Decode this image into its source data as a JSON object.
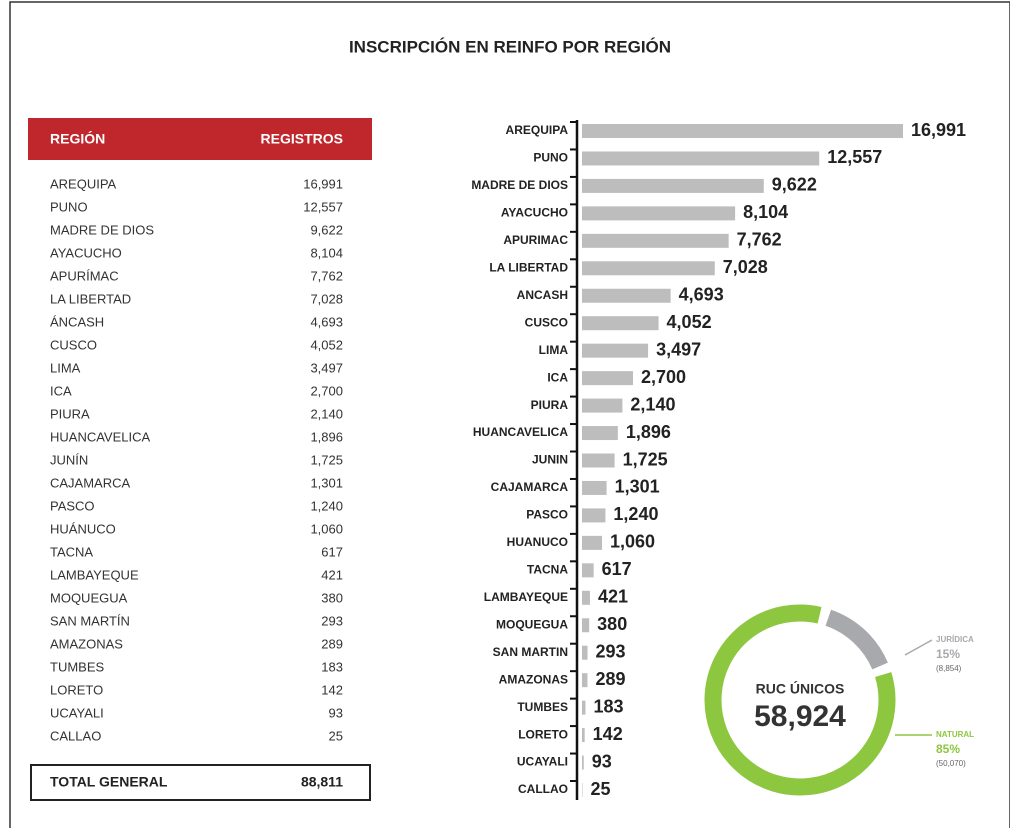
{
  "title": "INSCRIPCIÓN EN REINFO POR REGIÓN",
  "table": {
    "header": [
      "REGIÓN",
      "REGISTROS"
    ],
    "rows": [
      [
        "AREQUIPA",
        "16,991"
      ],
      [
        "PUNO",
        "12,557"
      ],
      [
        "MADRE DE DIOS",
        "9,622"
      ],
      [
        "AYACUCHO",
        "8,104"
      ],
      [
        "APURÍMAC",
        "7,762"
      ],
      [
        "LA LIBERTAD",
        "7,028"
      ],
      [
        "ÁNCASH",
        "4,693"
      ],
      [
        "CUSCO",
        "4,052"
      ],
      [
        "LIMA",
        "3,497"
      ],
      [
        "ICA",
        "2,700"
      ],
      [
        "PIURA",
        "2,140"
      ],
      [
        "HUANCAVELICA",
        "1,896"
      ],
      [
        "JUNÍN",
        "1,725"
      ],
      [
        "CAJAMARCA",
        "1,301"
      ],
      [
        "PASCO",
        "1,240"
      ],
      [
        "HUÁNUCO",
        "1,060"
      ],
      [
        "TACNA",
        "617"
      ],
      [
        "LAMBAYEQUE",
        "421"
      ],
      [
        "MOQUEGUA",
        "380"
      ],
      [
        "SAN MARTÍN",
        "293"
      ],
      [
        "AMAZONAS",
        "289"
      ],
      [
        "TUMBES",
        "183"
      ],
      [
        "LORETO",
        "142"
      ],
      [
        "UCAYALI",
        "93"
      ],
      [
        "CALLAO",
        "25"
      ]
    ],
    "total": [
      "TOTAL GENERAL",
      "88,811"
    ]
  },
  "chart_data": [
    {
      "type": "bar",
      "orientation": "horizontal",
      "color": "#bdbdbd",
      "categories": [
        "AREQUIPA",
        "PUNO",
        "MADRE DE DIOS",
        "AYACUCHO",
        "APURIMAC",
        "LA LIBERTAD",
        "ANCASH",
        "CUSCO",
        "LIMA",
        "ICA",
        "PIURA",
        "HUANCAVELICA",
        "JUNIN",
        "CAJAMARCA",
        "PASCO",
        "HUANUCO",
        "TACNA",
        "LAMBAYEQUE",
        "MOQUEGUA",
        "SAN MARTIN",
        "AMAZONAS",
        "TUMBES",
        "LORETO",
        "UCAYALI",
        "CALLAO"
      ],
      "values": [
        16991,
        12557,
        9622,
        8104,
        7762,
        7028,
        4693,
        4052,
        3497,
        2700,
        2140,
        1896,
        1725,
        1301,
        1240,
        1060,
        617,
        421,
        380,
        293,
        289,
        183,
        142,
        93,
        25
      ],
      "value_labels": [
        "16,991",
        "12,557",
        "9,622",
        "8,104",
        "7,762",
        "7,028",
        "4,693",
        "4,052",
        "3,497",
        "2,700",
        "2,140",
        "1,896",
        "1,725",
        "1,301",
        "1,240",
        "1,060",
        "617",
        "421",
        "380",
        "293",
        "289",
        "183",
        "142",
        "93",
        "25"
      ]
    },
    {
      "type": "donut",
      "title": "RUC ÚNICOS",
      "center_label": "58,924",
      "categories": [
        "JURÍDICA",
        "NATURAL"
      ],
      "values": [
        15,
        85
      ],
      "value_labels": [
        "15%",
        "85%"
      ],
      "sublabels": [
        "(8,854)",
        "(50,070)"
      ],
      "colors": [
        "#a7a9ac",
        "#8dc63f"
      ]
    }
  ]
}
